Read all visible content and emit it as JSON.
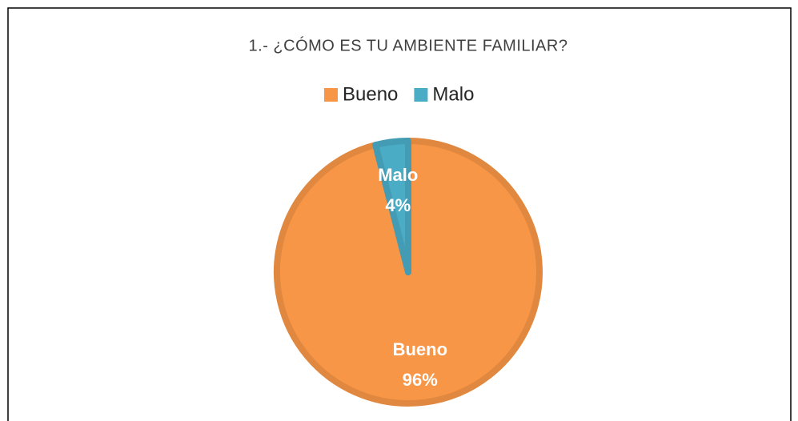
{
  "chart_data": {
    "type": "pie",
    "title": "1.- ¿CÓMO ES TU AMBIENTE FAMILIAR?",
    "categories": [
      "Bueno",
      "Malo"
    ],
    "values": [
      96,
      4
    ],
    "value_labels": [
      "96%",
      "4%"
    ],
    "colors": [
      "#F79646",
      "#4BACC6"
    ],
    "legend": "top"
  }
}
